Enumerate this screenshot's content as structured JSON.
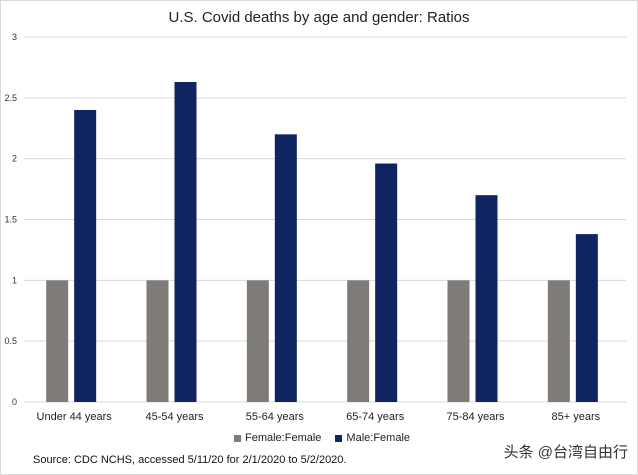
{
  "chart_data": {
    "type": "bar",
    "title": "U.S. Covid deaths by age and gender: Ratios",
    "categories": [
      "Under 44 years",
      "45-54 years",
      "55-64 years",
      "65-74 years",
      "75-84 years",
      "85+ years"
    ],
    "series": [
      {
        "name": "Female:Female",
        "color": "#7f7b78",
        "values": [
          1,
          1,
          1,
          1,
          1,
          1
        ]
      },
      {
        "name": "Male:Female",
        "color": "#0f2460",
        "values": [
          2.4,
          2.63,
          2.2,
          1.96,
          1.7,
          1.38
        ]
      }
    ],
    "ylim": [
      0,
      3
    ],
    "yticks": [
      "0",
      "0.5",
      "1",
      "1.5",
      "2",
      "2.5",
      "3"
    ],
    "grid": true,
    "legend_position": "bottom",
    "xlabel": "",
    "ylabel": ""
  },
  "source": "Source: CDC NCHS, accessed 5/11/20 for 2/1/2020 to 5/2/2020.",
  "watermark": "头条 @台湾自由行"
}
